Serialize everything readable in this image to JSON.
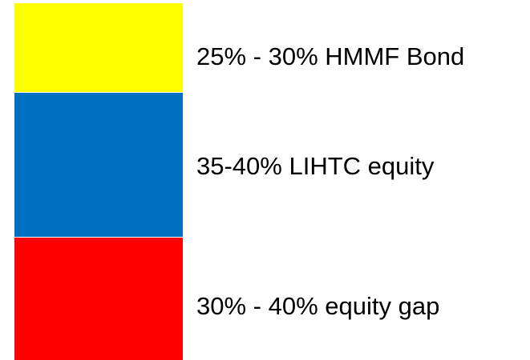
{
  "segments": [
    {
      "label": "25% - 30% HMMF Bond",
      "color": "#ffff00"
    },
    {
      "label": "35-40% LIHTC equity",
      "color": "#0070c0"
    },
    {
      "label": "30% - 40% equity gap",
      "color": "#ff0000"
    }
  ]
}
